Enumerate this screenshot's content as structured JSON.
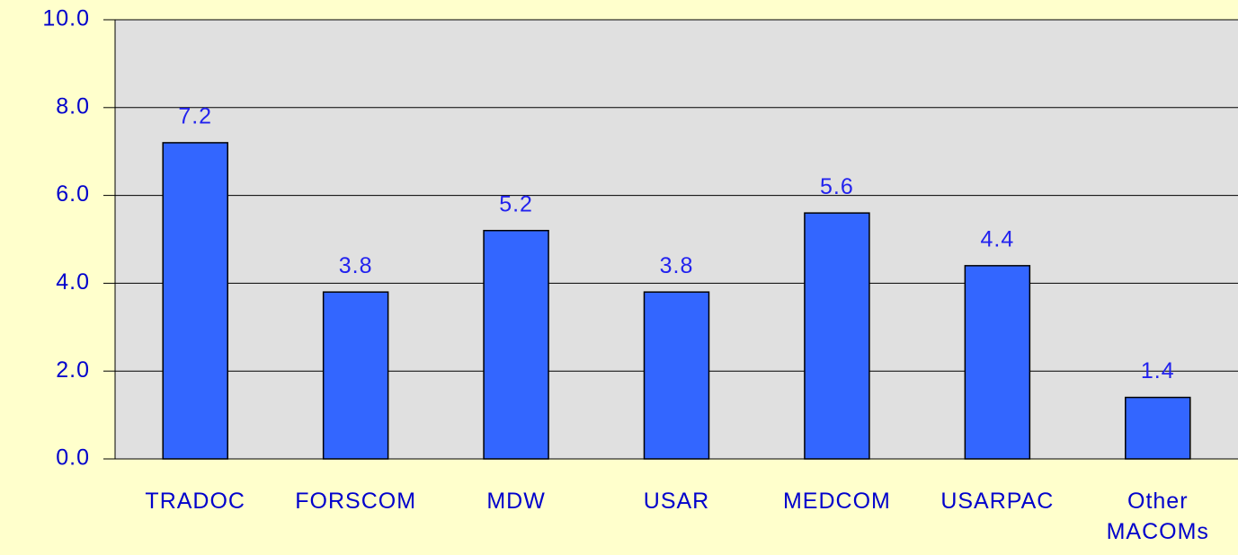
{
  "chart_data": {
    "type": "bar",
    "categories": [
      "TRADOC",
      "FORSCOM",
      "MDW",
      "USAR",
      "MEDCOM",
      "USARPAC",
      "Other MACOMs"
    ],
    "values": [
      7.2,
      3.8,
      5.2,
      3.8,
      5.6,
      4.4,
      1.4
    ],
    "color": "#3366ff",
    "ylim": [
      0,
      10
    ],
    "yticks": [
      {
        "value": 0,
        "label": "0.0"
      },
      {
        "value": 2,
        "label": "2.0"
      },
      {
        "value": 4,
        "label": "4.0"
      },
      {
        "value": 6,
        "label": "6.0"
      },
      {
        "value": 8,
        "label": "8.0"
      },
      {
        "value": 10,
        "label": "10.0"
      }
    ],
    "grid": true
  }
}
